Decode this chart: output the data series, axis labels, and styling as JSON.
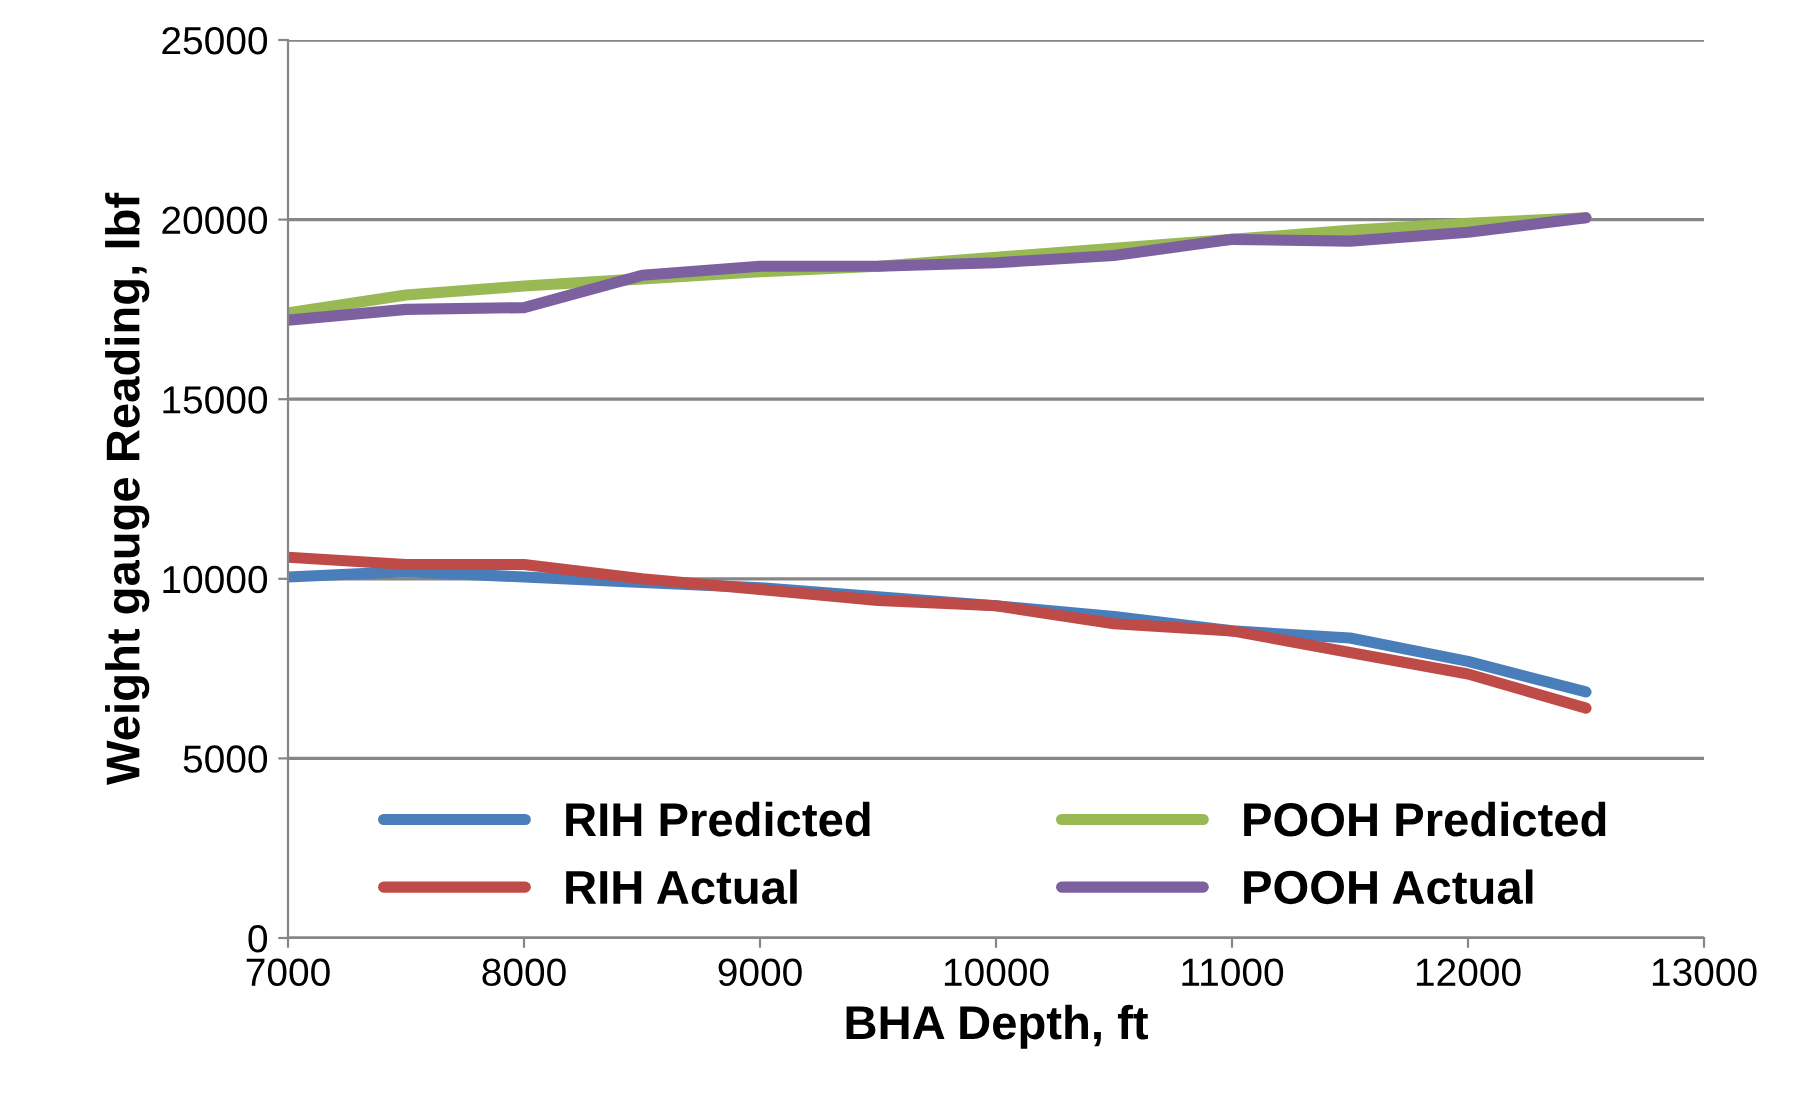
{
  "chart_data": {
    "type": "line",
    "xlabel": "BHA Depth, ft",
    "ylabel": "Weight gauge Reading, lbf",
    "x": [
      7000,
      7500,
      8000,
      8500,
      9000,
      9500,
      10000,
      10500,
      11000,
      11500,
      12000,
      12500
    ],
    "series": [
      {
        "name": "RIH Predicted",
        "color": "#4a7ebb",
        "values": [
          10050,
          10200,
          10050,
          9900,
          9750,
          9500,
          9250,
          8950,
          8550,
          8350,
          7700,
          6850
        ]
      },
      {
        "name": "RIH Actual",
        "color": "#be4b48",
        "values": [
          10600,
          10400,
          10400,
          10000,
          9700,
          9400,
          9250,
          8750,
          8550,
          7950,
          7350,
          6400
        ]
      },
      {
        "name": "POOH Predicted",
        "color": "#98b954",
        "values": [
          17400,
          17900,
          18150,
          18350,
          18550,
          18700,
          18950,
          19200,
          19450,
          19700,
          19900,
          20050
        ]
      },
      {
        "name": "POOH Actual",
        "color": "#7d60a0",
        "values": [
          17200,
          17500,
          17550,
          18450,
          18700,
          18700,
          18800,
          19000,
          19450,
          19400,
          19650,
          20050
        ]
      }
    ],
    "xlim": [
      7000,
      13000
    ],
    "xticks": [
      7000,
      8000,
      9000,
      10000,
      11000,
      12000,
      13000
    ],
    "ylim": [
      0,
      25000
    ],
    "yticks": [
      0,
      5000,
      10000,
      15000,
      20000,
      25000
    ],
    "grid": "y",
    "legend": "bottom",
    "marker": "none",
    "line_style": "solid"
  }
}
